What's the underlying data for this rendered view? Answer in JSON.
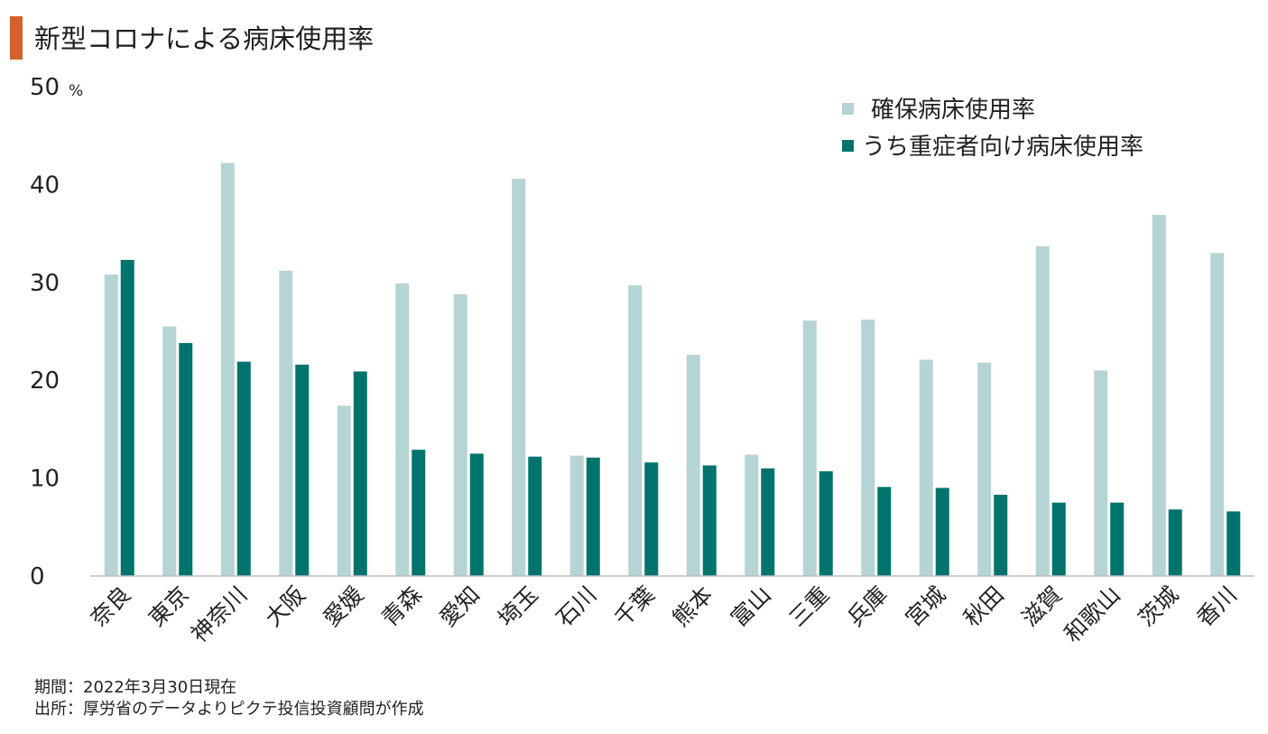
{
  "title": "新型コロナによる病床使用率",
  "chart_data": {
    "type": "bar",
    "title": "新型コロナによる病床使用率",
    "ylabel": "%",
    "ylim": [
      0,
      50
    ],
    "yticks": [
      0,
      10,
      20,
      30,
      40,
      50
    ],
    "grid": false,
    "legend_position": "top-right",
    "categories": [
      "奈良",
      "東京",
      "神奈川",
      "大阪",
      "愛媛",
      "青森",
      "愛知",
      "埼玉",
      "石川",
      "千葉",
      "熊本",
      "富山",
      "三重",
      "兵庫",
      "宮城",
      "秋田",
      "滋賀",
      "和歌山",
      "茨城",
      "香川"
    ],
    "series": [
      {
        "name": "確保病床使用率",
        "color": "#b5d4d3",
        "values": [
          30.8,
          25.5,
          42.2,
          31.2,
          17.4,
          29.9,
          28.8,
          40.6,
          12.3,
          29.7,
          22.6,
          12.4,
          26.1,
          26.2,
          22.1,
          21.8,
          33.7,
          21.0,
          36.9,
          33.0
        ]
      },
      {
        "name": "うち重症者向け病床使用率",
        "color": "#00736d",
        "values": [
          32.3,
          23.8,
          21.9,
          21.6,
          20.9,
          12.9,
          12.5,
          12.2,
          12.1,
          11.6,
          11.3,
          11.0,
          10.7,
          9.1,
          9.0,
          8.3,
          7.5,
          7.5,
          6.8,
          6.6
        ]
      }
    ]
  },
  "notes": {
    "period": "期間：2022年3月30日現在",
    "source": "出所：厚労省のデータよりピクテ投信投資顧問が作成"
  }
}
